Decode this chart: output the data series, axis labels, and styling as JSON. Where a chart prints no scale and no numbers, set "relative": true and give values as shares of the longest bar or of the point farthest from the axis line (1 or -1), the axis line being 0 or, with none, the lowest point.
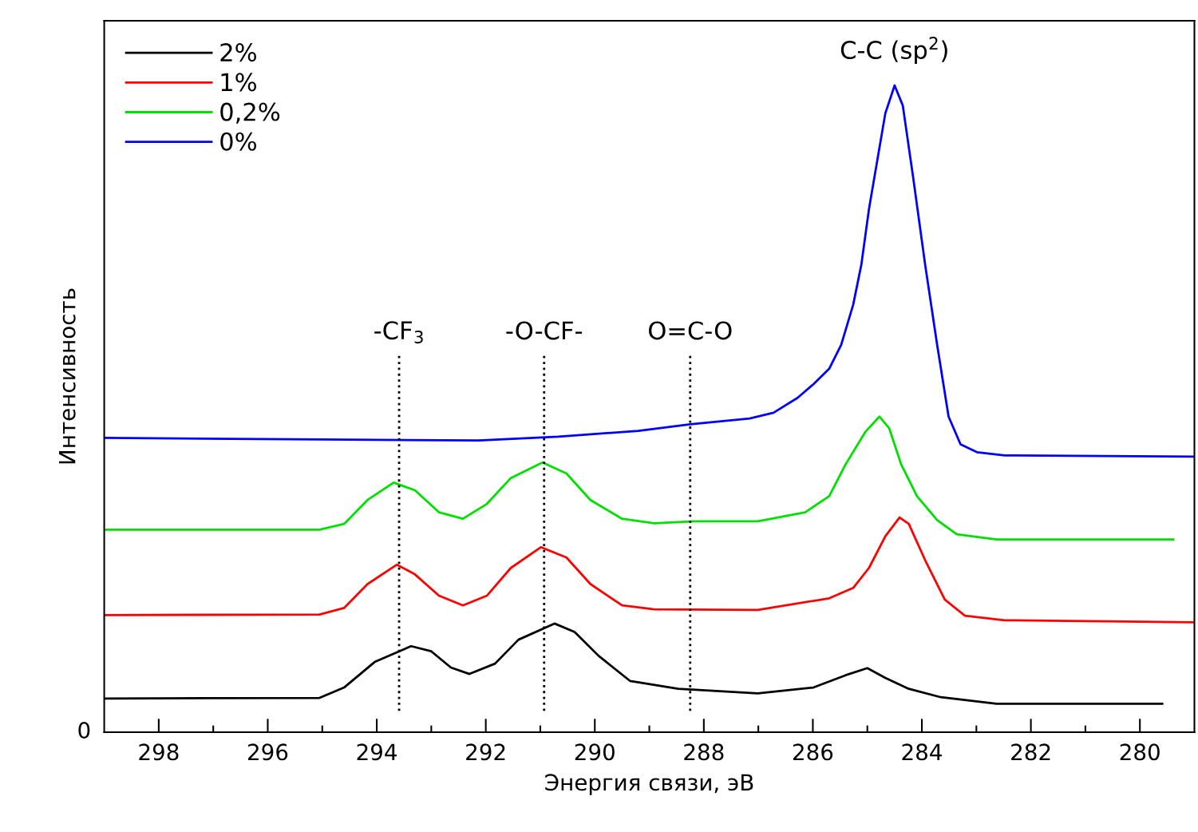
{
  "chart_data": {
    "type": "line",
    "relative": true,
    "xlabel": "Энергия связи, эВ",
    "ylabel": "Интенсивность",
    "xlim": [
      299,
      279
    ],
    "xticks": [
      298,
      {
        "value": 297,
        "label": null
      },
      296,
      {
        "value": 295,
        "label": null
      },
      294,
      {
        "value": 293,
        "label": null
      },
      292,
      {
        "value": 291,
        "label": null
      },
      290,
      {
        "value": 289,
        "label": null
      },
      288,
      {
        "value": 287,
        "label": null
      },
      286,
      {
        "value": 285,
        "label": null
      },
      284,
      {
        "value": 283,
        "label": null
      },
      282,
      {
        "value": 281,
        "label": null
      },
      280
    ],
    "legend": "top left",
    "grid": false,
    "tick_labels": "x",
    "series": [
      {
        "name": "2%",
        "color": "#000000",
        "x": [
          299.0,
          295.05,
          294.6,
          294.03,
          293.37,
          293.0,
          292.64,
          292.3,
          291.83,
          291.4,
          290.74,
          290.37,
          289.93,
          289.35,
          288.47,
          287.01,
          285.99,
          285.4,
          285.0,
          284.67,
          284.24,
          283.65,
          282.63,
          279.59
        ],
        "values": [
          0.052,
          0.053,
          0.069,
          0.109,
          0.133,
          0.125,
          0.1,
          0.09,
          0.106,
          0.143,
          0.168,
          0.155,
          0.118,
          0.079,
          0.067,
          0.06,
          0.069,
          0.088,
          0.099,
          0.084,
          0.067,
          0.054,
          0.044,
          0.044
        ]
      },
      {
        "name": "1%",
        "color": "#ff0000",
        "x": [
          299.0,
          295.05,
          294.6,
          294.17,
          293.63,
          293.3,
          292.86,
          292.42,
          291.98,
          291.54,
          290.99,
          290.52,
          290.08,
          289.5,
          288.91,
          287.01,
          285.7,
          285.26,
          284.97,
          284.67,
          284.41,
          284.24,
          283.94,
          283.58,
          283.21,
          282.48,
          279.0
        ],
        "values": [
          0.181,
          0.182,
          0.192,
          0.229,
          0.259,
          0.244,
          0.211,
          0.196,
          0.211,
          0.254,
          0.286,
          0.27,
          0.229,
          0.196,
          0.19,
          0.189,
          0.207,
          0.223,
          0.254,
          0.303,
          0.332,
          0.322,
          0.266,
          0.205,
          0.18,
          0.173,
          0.17
        ]
      },
      {
        "name": "0,2%",
        "color": "#00e000",
        "x": [
          299.0,
          295.05,
          294.6,
          294.17,
          293.69,
          293.3,
          292.86,
          292.42,
          291.98,
          291.54,
          290.96,
          290.52,
          290.08,
          289.5,
          288.91,
          288.18,
          287.01,
          286.14,
          285.7,
          285.4,
          285.04,
          284.78,
          284.6,
          284.38,
          284.09,
          283.72,
          283.36,
          282.63,
          279.39
        ],
        "values": [
          0.313,
          0.313,
          0.322,
          0.359,
          0.386,
          0.374,
          0.34,
          0.33,
          0.353,
          0.393,
          0.417,
          0.4,
          0.359,
          0.33,
          0.323,
          0.326,
          0.326,
          0.34,
          0.365,
          0.414,
          0.464,
          0.488,
          0.47,
          0.414,
          0.365,
          0.328,
          0.306,
          0.298,
          0.298
        ]
      },
      {
        "name": "0%",
        "color": "#0000ff",
        "x": [
          299.0,
          292.13,
          290.67,
          289.2,
          288.25,
          287.16,
          286.72,
          286.28,
          285.99,
          285.7,
          285.48,
          285.26,
          285.11,
          284.97,
          284.82,
          284.67,
          284.5,
          284.35,
          284.16,
          283.94,
          283.72,
          283.51,
          283.29,
          282.99,
          282.48,
          279.0
        ],
        "values": [
          0.455,
          0.451,
          0.457,
          0.466,
          0.476,
          0.485,
          0.494,
          0.517,
          0.538,
          0.562,
          0.599,
          0.661,
          0.723,
          0.809,
          0.883,
          0.957,
          1.0,
          0.969,
          0.858,
          0.723,
          0.599,
          0.488,
          0.445,
          0.433,
          0.428,
          0.426
        ]
      }
    ],
    "ref_lines": [
      {
        "axis": "x",
        "value": 293.59,
        "label": "-CF$_{3}$",
        "color": "#000000",
        "line_style": "dotted"
      },
      {
        "axis": "x",
        "value": 290.93,
        "label": "-O-CF-",
        "color": "#000000",
        "line_style": "dotted"
      },
      {
        "axis": "x",
        "value": 288.25,
        "label": "O=C-O",
        "color": "#000000",
        "line_style": "dotted"
      }
    ],
    "annotations": [
      {
        "text": "C-C (sp$^{2}$)",
        "x": 284.5,
        "y": 1.0
      },
      "0"
    ]
  }
}
